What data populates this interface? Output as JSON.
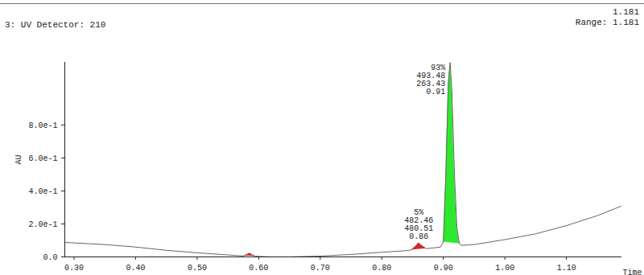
{
  "chart_data": {
    "type": "line",
    "title": "3: UV Detector: 210",
    "header_right": [
      "1.181",
      "Range: 1.181"
    ],
    "x_label": "Time",
    "y_label": "AU",
    "color": "#666666",
    "x": [
      0.285,
      0.3,
      0.35,
      0.4,
      0.45,
      0.5,
      0.55,
      0.575,
      0.58,
      0.585,
      0.59,
      0.595,
      0.62,
      0.65,
      0.7,
      0.75,
      0.8,
      0.84,
      0.848,
      0.855,
      0.86,
      0.865,
      0.872,
      0.885,
      0.895,
      0.9,
      0.904,
      0.908,
      0.911,
      0.914,
      0.918,
      0.922,
      0.926,
      0.93,
      0.95,
      1.0,
      1.05,
      1.1,
      1.15,
      1.19
    ],
    "values": [
      0.088,
      0.085,
      0.075,
      0.06,
      0.04,
      0.025,
      0.012,
      0.006,
      0.012,
      0.022,
      0.012,
      0.004,
      0.0,
      0.0,
      0.005,
      0.015,
      0.028,
      0.038,
      0.042,
      0.065,
      0.085,
      0.068,
      0.05,
      0.055,
      0.06,
      0.09,
      0.5,
      1.05,
      1.18,
      1.0,
      0.5,
      0.18,
      0.08,
      0.07,
      0.075,
      0.105,
      0.14,
      0.19,
      0.25,
      0.31
    ],
    "peaks": [
      {
        "start": 0.575,
        "end": 0.595,
        "color": "#e8201e"
      },
      {
        "start": 0.848,
        "end": 0.872,
        "color": "#e8201e",
        "labels": [
          "5%",
          "482.46",
          "480.51",
          "0.86"
        ]
      },
      {
        "start": 0.9,
        "end": 0.926,
        "color": "#2ee82e",
        "labels": [
          "93%",
          "493.48",
          "263.43",
          "0.91"
        ]
      }
    ],
    "xlim": [
      0.285,
      1.19
    ],
    "ylim": [
      0,
      1.181
    ],
    "xticks": [
      {
        "value": 0.3,
        "label": "0.30"
      },
      {
        "value": 0.4,
        "label": "0.40"
      },
      {
        "value": 0.5,
        "label": "0.50"
      },
      {
        "value": 0.6,
        "label": "0.60"
      },
      {
        "value": 0.7,
        "label": "0.70"
      },
      {
        "value": 0.8,
        "label": "0.80"
      },
      {
        "value": 0.9,
        "label": "0.90"
      },
      {
        "value": 1.0,
        "label": "1.00"
      },
      {
        "value": 1.1,
        "label": "1.10"
      }
    ],
    "yticks": [
      {
        "value": 0,
        "label": "0.0"
      },
      {
        "value": 0.2,
        "label": "2.0e-1"
      },
      {
        "value": 0.4,
        "label": "4.0e-1"
      },
      {
        "value": 0.6,
        "label": "6.0e-1"
      },
      {
        "value": 0.8,
        "label": "8.0e-1"
      }
    ]
  }
}
